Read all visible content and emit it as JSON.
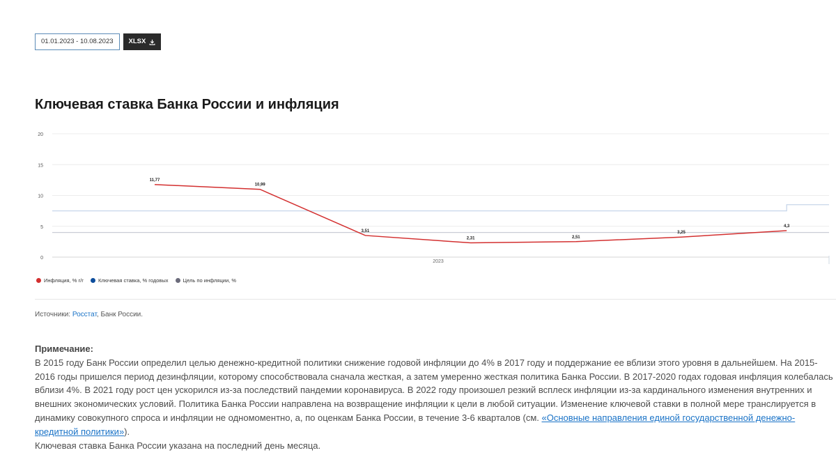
{
  "toolbar": {
    "date_range": "01.01.2023 - 10.08.2023",
    "export_label": "XLSX",
    "export_icon": "download-icon"
  },
  "title": "Ключевая ставка Банка России и инфляция",
  "chart_data": {
    "type": "line",
    "y_ticks": [
      "0",
      "5",
      "10",
      "15",
      "20"
    ],
    "ylim": [
      0,
      20
    ],
    "x_label": "2023",
    "grid": true,
    "series": [
      {
        "name": "Инфляция, % г/г",
        "color": "#d32f2f",
        "points": [
          11.77,
          10.99,
          3.51,
          2.31,
          2.51,
          3.25,
          4.3
        ],
        "labels": [
          "11,77",
          "10,99",
          "3,51",
          "2,31",
          "2,51",
          "3,25",
          "4,3"
        ]
      },
      {
        "name": "Ключевая ставка, % годовых",
        "color": "#0d4d9c",
        "steps": [
          [
            0,
            7.5
          ],
          [
            6.0,
            7.5
          ],
          [
            6.0,
            8.5
          ],
          [
            6.6,
            8.5
          ]
        ]
      },
      {
        "name": "Цель по инфляции, %",
        "color": "#6b6b6b",
        "value": 4
      }
    ],
    "legend_position": "bottom-left"
  },
  "legend": [
    {
      "label": "Инфляция, % г/г",
      "color": "#d32f2f"
    },
    {
      "label": "Ключевая ставка, % годовых",
      "color": "#0d4d9c"
    },
    {
      "label": "Цель по инфляции, %",
      "color": "#6b6b7b"
    }
  ],
  "sources": {
    "prefix": "Источники: ",
    "link": "Росстат",
    "suffix": ", Банк России."
  },
  "note": {
    "heading": "Примечание:",
    "p1": "В 2015 году Банк России определил целью денежно-кредитной политики снижение годовой инфляции до 4% в 2017 году и поддержание ее вблизи этого уровня в дальнейшем. На 2015-2016 годы пришелся период дезинфляции, которому способствовала сначала жесткая, а затем умеренно жесткая политика Банка России. В 2017-2020 годах годовая инфляция колебалась вблизи 4%. В 2021 году рост цен ускорился из-за последствий пандемии коронавируса. В 2022 году произошел резкий всплеск инфляции из-за кардинального изменения внутренних и внешних экономических условий. Политика Банка России направлена на возвращение инфляции к цели в любой ситуации. Изменение ключевой ставки в полной мере транслируется в динамику совокупного спроса и инфляции не одномоментно, а, по оценкам Банка России, в течение 3-6 кварталов (см. ",
    "link": "«Основные направления единой государственной денежно-кредитной политики»",
    "p1_end": ").",
    "p2": "Ключевая ставка Банка России указана на последний день месяца."
  }
}
